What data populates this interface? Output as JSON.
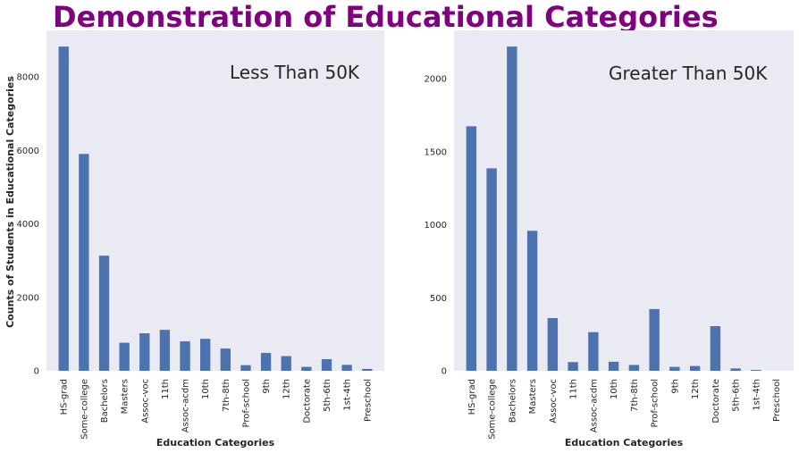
{
  "figure": {
    "title": "Demonstration of Educational Categories",
    "title_color": "#800080"
  },
  "style": {
    "plot_bg": "#EAEAF2",
    "bar_color": "#4C72B0",
    "text_color": "#262626"
  },
  "chart_data": [
    {
      "type": "bar",
      "annotation": "Less Than 50K",
      "xlabel": "Education Categories",
      "ylabel": "Counts of Students in Educational Categories",
      "categories": [
        "HS-grad",
        "Some-college",
        "Bachelors",
        "Masters",
        "Assoc-voc",
        "11th",
        "Assoc-acdm",
        "10th",
        "7th-8th",
        "Prof-school",
        "9th",
        "12th",
        "Doctorate",
        "5th-6th",
        "1st-4th",
        "Preschool"
      ],
      "values": [
        8826,
        5904,
        3134,
        764,
        1021,
        1115,
        802,
        871,
        606,
        153,
        487,
        400,
        107,
        317,
        162,
        51
      ],
      "ylim": [
        0,
        9268
      ],
      "yticks": [
        0,
        2000,
        4000,
        6000,
        8000
      ],
      "grid": false
    },
    {
      "type": "bar",
      "annotation": "Greater Than 50K",
      "xlabel": "Education Categories",
      "ylabel": "",
      "categories": [
        "HS-grad",
        "Some-college",
        "Bachelors",
        "Masters",
        "Assoc-voc",
        "11th",
        "Assoc-acdm",
        "10th",
        "7th-8th",
        "Prof-school",
        "9th",
        "12th",
        "Doctorate",
        "5th-6th",
        "1st-4th",
        "Preschool"
      ],
      "values": [
        1675,
        1387,
        2221,
        959,
        361,
        60,
        265,
        62,
        40,
        423,
        27,
        33,
        306,
        16,
        6,
        0
      ],
      "ylim": [
        0,
        2332
      ],
      "yticks": [
        0,
        500,
        1000,
        1500,
        2000
      ],
      "grid": false
    }
  ]
}
